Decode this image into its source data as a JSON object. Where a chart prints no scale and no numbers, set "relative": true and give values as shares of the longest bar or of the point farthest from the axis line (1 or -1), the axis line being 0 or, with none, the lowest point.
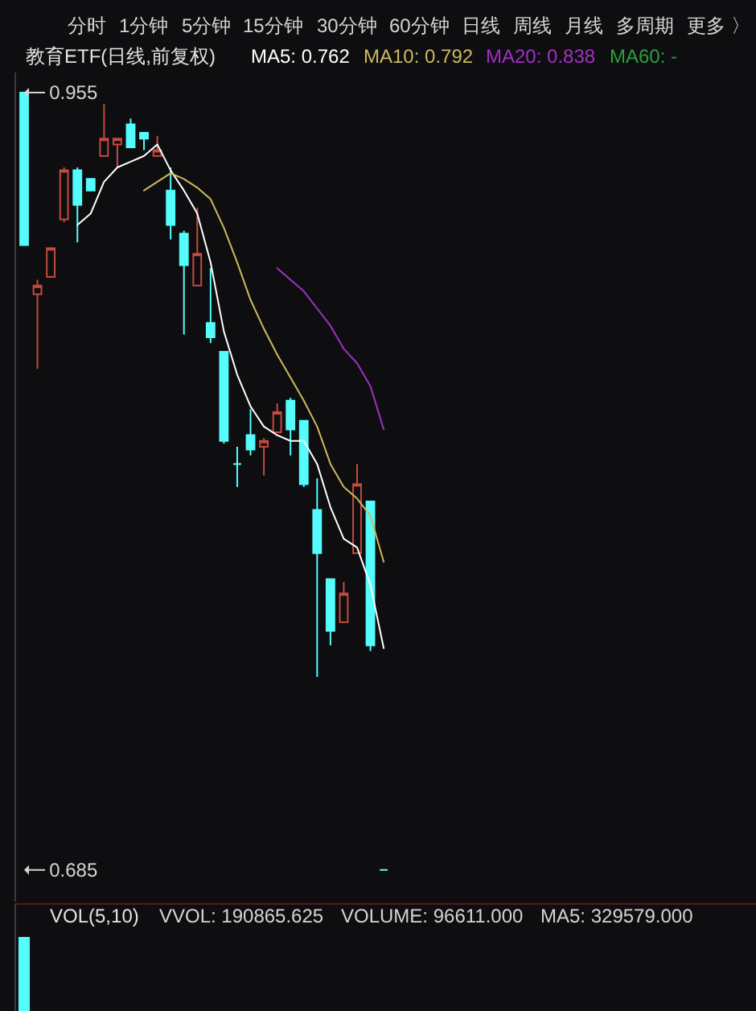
{
  "chart_data": [
    {
      "type": "other",
      "annotations": [
        "分时",
        "1分钟",
        "5分钟",
        "15分钟",
        "30分钟",
        "60分钟",
        "日线",
        "周线",
        "月线",
        "多周期",
        "更多 〉"
      ]
    },
    {
      "type": "candlestick",
      "title": "教育ETF(日线,前复权)",
      "tick_labels": "y",
      "ylim": [
        0.674,
        0.962
      ],
      "yticks": [
        0.685,
        0.955
      ],
      "categories": [
        null,
        null,
        null,
        null,
        null,
        null,
        null,
        null,
        null,
        null,
        null,
        null,
        null,
        null,
        null,
        null,
        null,
        null,
        null,
        null,
        null,
        null,
        null,
        null,
        null,
        null,
        null,
        null
      ],
      "ohlc": [
        [
          0.955,
          0.955,
          0.902,
          0.902
        ],
        [
          0.885,
          0.89,
          0.859,
          0.888
        ],
        [
          0.891,
          0.901,
          0.891,
          0.901
        ],
        [
          0.911,
          0.929,
          0.91,
          0.928
        ],
        [
          0.928,
          0.929,
          0.903,
          0.916
        ],
        [
          0.925,
          0.925,
          0.921,
          0.921
        ],
        [
          0.933,
          0.951,
          0.933,
          0.939
        ],
        [
          0.937,
          0.939,
          0.929,
          0.939
        ],
        [
          0.944,
          0.946,
          0.936,
          0.936
        ],
        [
          0.941,
          0.941,
          0.935,
          0.939
        ],
        [
          0.933,
          0.94,
          0.933,
          0.935
        ],
        [
          0.921,
          0.929,
          0.904,
          0.909
        ],
        [
          0.906,
          0.907,
          0.871,
          0.895
        ],
        [
          0.888,
          0.915,
          0.888,
          0.899
        ],
        [
          0.875,
          0.894,
          0.868,
          0.87
        ],
        [
          0.865,
          0.865,
          0.833,
          0.834
        ],
        [
          0.826,
          0.832,
          0.818,
          0.826
        ],
        [
          0.836,
          0.845,
          0.829,
          0.831
        ],
        [
          0.832,
          0.835,
          0.822,
          0.834
        ],
        [
          0.837,
          0.847,
          0.837,
          0.844
        ],
        [
          0.848,
          0.849,
          0.829,
          0.838
        ],
        [
          0.841,
          0.841,
          0.818,
          0.819
        ],
        [
          0.81,
          0.821,
          0.752,
          0.795
        ],
        [
          0.786,
          0.786,
          0.763,
          0.768
        ],
        [
          0.771,
          0.785,
          0.771,
          0.781
        ],
        [
          0.795,
          0.826,
          0.795,
          0.819
        ],
        [
          0.813,
          0.813,
          0.761,
          0.763
        ],
        [
          0.685,
          0.685,
          0.685,
          0.685
        ]
      ],
      "colors": [
        "#54fcfc",
        "#c44a3f",
        "#c44a3f",
        "#c44a3f",
        "#54fcfc",
        "#54fcfc",
        "#c44a3f",
        "#c44a3f",
        "#54fcfc",
        "#54fcfc",
        "#c44a3f",
        "#54fcfc",
        "#54fcfc",
        "#c44a3f",
        "#54fcfc",
        "#54fcfc",
        "#54fcfc",
        "#54fcfc",
        "#c44a3f",
        "#c44a3f",
        "#54fcfc",
        "#54fcfc",
        "#54fcfc",
        "#54fcfc",
        "#c44a3f",
        "#c44a3f",
        "#54fcfc",
        "#54fcfc"
      ],
      "series": [
        {
          "name": "MA5: 0.762",
          "type": "line",
          "color": "#ffffff",
          "values": [
            null,
            null,
            null,
            null,
            0.909,
            0.913,
            0.924,
            0.929,
            0.931,
            0.933,
            0.937,
            0.928,
            0.921,
            0.913,
            0.896,
            0.872,
            0.857,
            0.846,
            0.839,
            0.836,
            0.834,
            0.834,
            0.826,
            0.811,
            0.8,
            0.797,
            0.784,
            0.762
          ]
        },
        {
          "name": "MA10: 0.792",
          "type": "line",
          "color": "#cdb95c",
          "values": [
            null,
            null,
            null,
            null,
            null,
            null,
            null,
            null,
            null,
            0.921,
            0.924,
            0.927,
            0.925,
            0.922,
            0.918,
            0.908,
            0.896,
            0.883,
            0.873,
            0.864,
            0.856,
            0.848,
            0.839,
            0.826,
            0.818,
            0.814,
            0.808,
            0.792
          ]
        },
        {
          "name": "MA20: 0.838",
          "type": "line",
          "color": "#a32fc4",
          "values": [
            null,
            null,
            null,
            null,
            null,
            null,
            null,
            null,
            null,
            null,
            null,
            null,
            null,
            null,
            null,
            null,
            null,
            null,
            null,
            0.894,
            0.89,
            0.886,
            0.88,
            0.874,
            0.866,
            0.861,
            0.853,
            0.838
          ]
        },
        {
          "name": "MA60: -",
          "type": "line",
          "color": "#2e9e3e",
          "values": [
            null,
            null,
            null,
            null,
            null,
            null,
            null,
            null,
            null,
            null,
            null,
            null,
            null,
            null,
            null,
            null,
            null,
            null,
            null,
            null,
            null,
            null,
            null,
            null,
            null,
            null,
            null,
            null
          ]
        }
      ]
    },
    {
      "type": "bar",
      "relative": true,
      "title": "VOL(5,10)",
      "categories": [
        null,
        null,
        null,
        null,
        null,
        null,
        null,
        null,
        null,
        null,
        null,
        null,
        null,
        null,
        null,
        null,
        null,
        null,
        null,
        null,
        null,
        null,
        null,
        null,
        null,
        null,
        null,
        null
      ],
      "values": [
        1,
        null,
        null,
        null,
        null,
        null,
        null,
        null,
        null,
        null,
        null,
        null,
        null,
        null,
        null,
        null,
        null,
        null,
        null,
        null,
        null,
        null,
        null,
        null,
        null,
        null,
        null,
        null
      ],
      "color": "#54fcfc",
      "annotations": [
        "VVOL: 190865.625",
        "VOLUME: 96611.000",
        "MA5: 329579.000"
      ]
    }
  ]
}
